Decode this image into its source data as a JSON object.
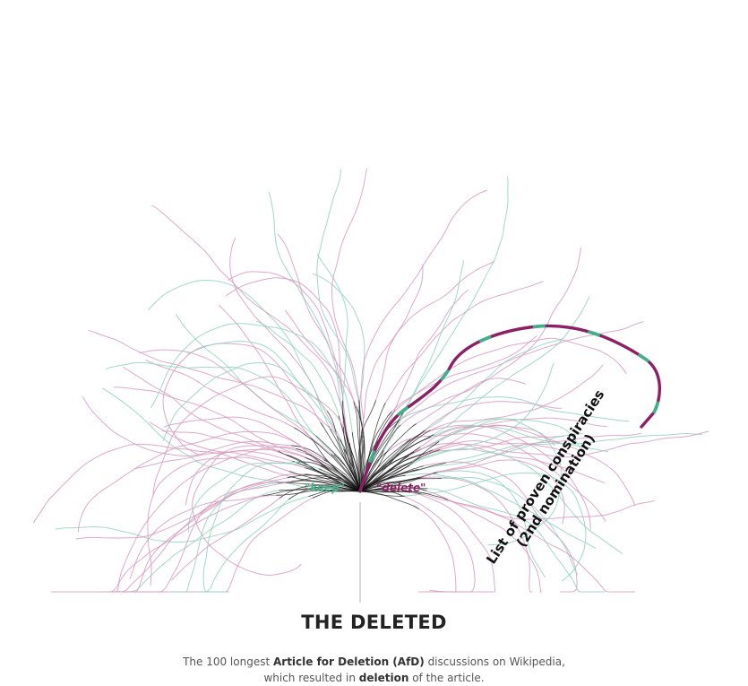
{
  "title": "THE DELETED",
  "subtitle": {
    "line1_pre": "The 100 longest ",
    "line1_bold": "Article for Deletion (AfD)",
    "line1_post": " discussions on Wikipedia,",
    "line2_pre": "which resulted in ",
    "line2_bold": "deletion",
    "line2_post": " of the article."
  },
  "labels": {
    "keep": "\"keep\"",
    "delete": "\"delete\""
  },
  "highlight": {
    "line1": "List of proven conspiracies",
    "line2": "(2nd nomination)"
  },
  "colors": {
    "keep": "#3fb08a",
    "delete": "#8e1f64",
    "keep_light": "#8fd3bb",
    "delete_light": "#d79ac0",
    "trunk": "#111111"
  }
}
